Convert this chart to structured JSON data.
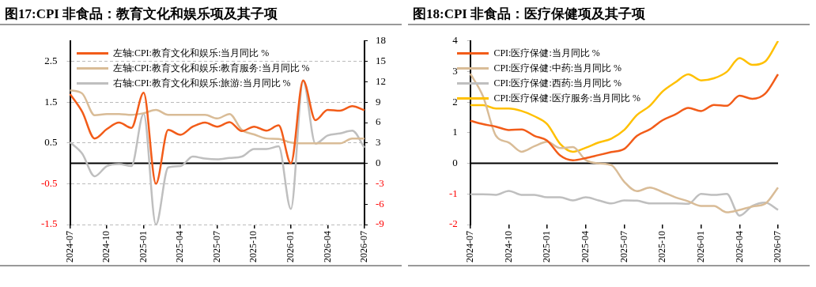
{
  "chart_data": [
    {
      "type": "line",
      "title": "图17:CPI 非食品：教育文化和娱乐项及其子项",
      "categories": [
        "2024-07",
        null,
        null,
        "2024-10",
        null,
        null,
        "2025-01",
        null,
        null,
        "2025-04",
        null,
        null,
        "2025-07",
        null,
        null,
        "2025-10",
        null,
        null,
        "2026-01",
        null,
        null,
        "2026-04",
        null,
        null,
        "2026-07"
      ],
      "series": [
        {
          "name": "左轴:CPI:教育文化和娱乐:当月同比 %",
          "color": "#f25c19",
          "values": [
            1.7,
            1.26,
            0.61,
            0.84,
            1.0,
            0.87,
            1.73,
            -0.5,
            0.82,
            0.7,
            0.9,
            1.0,
            0.9,
            1.01,
            0.79,
            0.9,
            0.8,
            0.93,
            0.0,
            2.03,
            1.06,
            1.31,
            1.29,
            1.4,
            1.3
          ]
        },
        {
          "name": "左轴:CPI:教育文化和娱乐:教育服务:当月同比 %",
          "color": "#d9bc97",
          "values": [
            1.79,
            1.71,
            1.18,
            1.21,
            1.21,
            1.19,
            1.23,
            1.31,
            1.19,
            1.19,
            1.19,
            1.19,
            1.1,
            1.21,
            0.82,
            0.71,
            0.61,
            0.6,
            0.51,
            0.49,
            0.49,
            0.49,
            0.49,
            0.61,
            0.61
          ]
        },
        {
          "name": "右轴:CPI:教育文化和娱乐:旅游:当月同比 %",
          "color": "#bfbfbf",
          "axis": "y2",
          "values": [
            3.1,
            1.4,
            -1.9,
            -0.4,
            -0.1,
            -0.4,
            7.3,
            -9,
            -0.6,
            -0.4,
            1.0,
            0.7,
            0.6,
            0.8,
            1.0,
            2.1,
            2.1,
            2.5,
            -6.7,
            12.1,
            2.9,
            4.1,
            4.4,
            4.8,
            2.3
          ]
        }
      ],
      "ylim": [
        -1.5,
        3
      ],
      "yticks": [
        -1.5,
        -0.5,
        0.5,
        1.5,
        2.5
      ],
      "y2lim": [
        -9,
        18
      ],
      "y2ticks": [
        -9,
        -6,
        -3,
        0,
        3,
        6,
        9,
        12,
        15,
        18
      ],
      "grid": "y",
      "legend": "top left"
    },
    {
      "type": "line",
      "title": "图18:CPI 非食品：医疗保健项及其子项",
      "categories": [
        "2024-07",
        null,
        null,
        "2024-10",
        null,
        null,
        "2025-01",
        null,
        null,
        "2025-04",
        null,
        null,
        "2025-07",
        null,
        null,
        "2025-10",
        null,
        null,
        "2026-01",
        null,
        null,
        "2026-04",
        null,
        null,
        "2026-07"
      ],
      "series": [
        {
          "name": "CPI:医疗保健:当月同比 %",
          "color": "#f25c19",
          "values": [
            1.39,
            1.28,
            1.2,
            1.09,
            1.11,
            0.9,
            0.74,
            0.26,
            0.1,
            0.17,
            0.27,
            0.37,
            0.47,
            0.9,
            1.11,
            1.41,
            1.6,
            1.81,
            1.71,
            1.91,
            1.88,
            2.21,
            2.11,
            2.28,
            2.91
          ]
        },
        {
          "name": "CPI:医疗保健:中药:当月同比 %",
          "color": "#d9bc97",
          "values": [
            2.93,
            2.18,
            0.9,
            0.68,
            0.38,
            0.56,
            0.71,
            0.5,
            0.53,
            0.11,
            0.0,
            -0.06,
            -0.6,
            -0.91,
            -0.79,
            -0.94,
            -1.11,
            -1.24,
            -1.39,
            -1.39,
            -1.6,
            -1.52,
            -1.41,
            -1.32,
            -0.79
          ]
        },
        {
          "name": "CPI:医疗保健:西药:当月同比 %",
          "color": "#bfbfbf",
          "values": [
            -1.01,
            -1.01,
            -1.03,
            -0.9,
            -1.03,
            -1.03,
            -1.11,
            -1.11,
            -1.21,
            -1.11,
            -1.21,
            -1.31,
            -1.21,
            -1.22,
            -1.31,
            -1.31,
            -1.31,
            -1.32,
            -1.0,
            -1.03,
            -1.0,
            -1.71,
            -1.39,
            -1.28,
            -1.52
          ]
        },
        {
          "name": "CPI:医疗保健:医疗服务:当月同比 %",
          "color": "#ffc000",
          "values": [
            1.9,
            1.9,
            1.79,
            1.79,
            1.71,
            1.54,
            1.28,
            0.64,
            0.38,
            0.51,
            0.68,
            0.81,
            1.09,
            1.58,
            1.88,
            2.35,
            2.65,
            2.91,
            2.71,
            2.78,
            2.99,
            3.44,
            3.22,
            3.33,
            4.0
          ]
        }
      ],
      "ylim": [
        -2,
        4
      ],
      "yticks": [
        -2,
        -1,
        0,
        1,
        2,
        3,
        4
      ],
      "legend": "top"
    }
  ]
}
